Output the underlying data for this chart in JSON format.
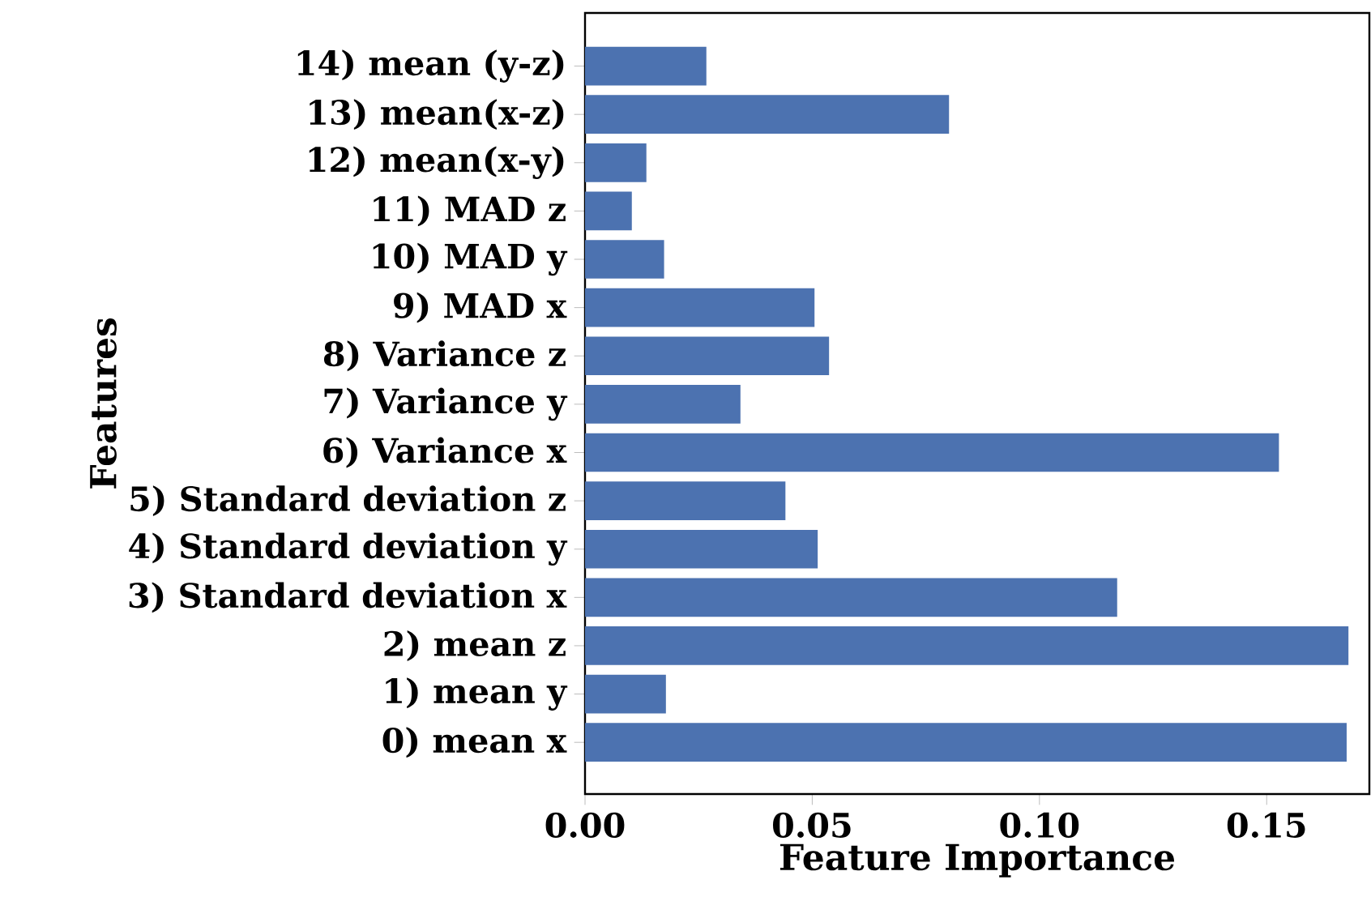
{
  "chart_data": {
    "type": "bar",
    "orientation": "horizontal",
    "xlabel": "Feature Importance",
    "ylabel": "Features",
    "categories": [
      "14) mean (y-z)",
      "13) mean(x-z)",
      "12) mean(x-y)",
      "11) MAD z",
      "10) MAD y",
      "9) MAD x",
      "8) Variance z",
      "7) Variance y",
      "6) Variance x",
      "5) Standard deviation z",
      "4) Standard deviation y",
      "3) Standard deviation x",
      "2) mean z",
      "1) mean y",
      "0) mean x"
    ],
    "values": [
      0.0267,
      0.0801,
      0.0135,
      0.0103,
      0.0174,
      0.0505,
      0.0537,
      0.0342,
      0.1527,
      0.0441,
      0.0512,
      0.1171,
      0.168,
      0.0178,
      0.1676
    ],
    "color": "#4c72b0",
    "xlim": [
      0,
      0.1726
    ],
    "xticks": [
      {
        "value": 0,
        "label": "0.00"
      },
      {
        "value": 0.05,
        "label": "0.05"
      },
      {
        "value": 0.1,
        "label": "0.10"
      },
      {
        "value": 0.15,
        "label": "0.15"
      }
    ]
  }
}
